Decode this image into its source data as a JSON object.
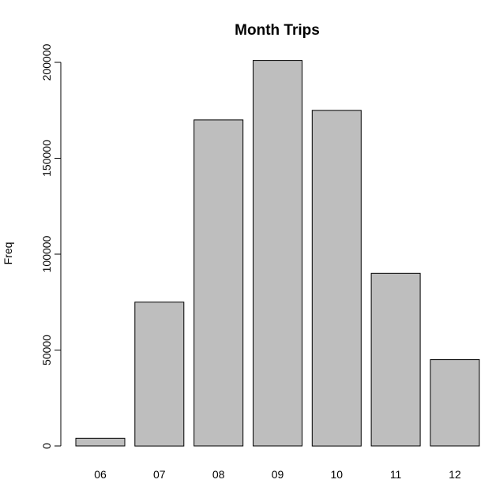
{
  "chart_data": {
    "type": "bar",
    "title": "Month Trips",
    "xlabel": "",
    "ylabel": "Freq",
    "categories": [
      "06",
      "07",
      "08",
      "09",
      "10",
      "11",
      "12"
    ],
    "values": [
      4000,
      75000,
      170000,
      201000,
      175000,
      90000,
      45000
    ],
    "ylim": [
      0,
      200000
    ],
    "yticks": [
      0,
      50000,
      100000,
      150000,
      200000
    ],
    "ytick_labels": [
      "0",
      "50000",
      "100000",
      "150000",
      "200000"
    ],
    "bar_color": "#bebebe",
    "grid": false,
    "legend": "none"
  }
}
